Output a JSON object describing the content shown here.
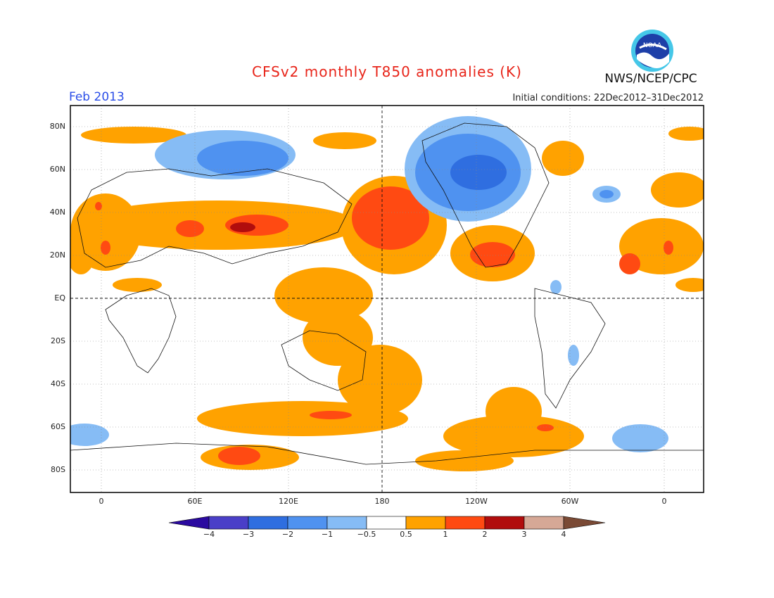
{
  "header": {
    "title": "CFSv2 monthly T850 anomalies (K)",
    "month": "Feb 2013",
    "initial_conditions": "Initial conditions: 22Dec2012–31Dec2012",
    "agency": "NWS/NCEP/CPC",
    "logo_text": "NOAA"
  },
  "map": {
    "lat_labels": [
      "80N",
      "60N",
      "40N",
      "20N",
      "EQ",
      "20S",
      "40S",
      "60S",
      "80S"
    ],
    "lon_labels": [
      "0",
      "60E",
      "120E",
      "180",
      "120W",
      "60W",
      "0"
    ]
  },
  "colorbar": {
    "labels": [
      "−4",
      "−3",
      "−2",
      "−1",
      "−0.5",
      "0.5",
      "1",
      "2",
      "3",
      "4"
    ],
    "colors": [
      "#2b0aa0",
      "#4a3fc8",
      "#2f6ee0",
      "#4f92f0",
      "#86bcf5",
      "#ffffff",
      "#ffa200",
      "#ff4a12",
      "#b10d0d",
      "#d6a896",
      "#7a4a35"
    ]
  },
  "colors": {
    "warm1": "#ffa200",
    "warm2": "#ff4a12",
    "warm3": "#b10d0d",
    "cool1": "#86bcf5",
    "cool2": "#4f92f0",
    "cool3": "#2f6ee0"
  }
}
